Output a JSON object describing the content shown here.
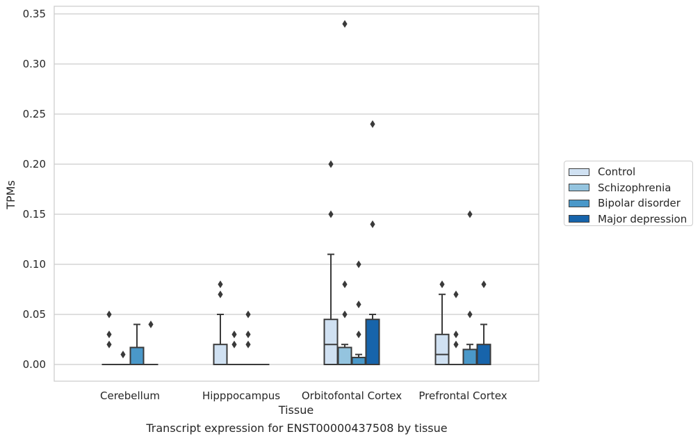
{
  "chart_data": {
    "type": "box",
    "title": "Transcript expression for ENST00000437508 by tissue",
    "xlabel": "Tissue",
    "ylabel": "TPMs",
    "ylim": [
      -0.017,
      0.358
    ],
    "yticks": [
      "0.00",
      "0.05",
      "0.10",
      "0.15",
      "0.20",
      "0.25",
      "0.30",
      "0.35"
    ],
    "categories": [
      "Cerebellum",
      "Hipppocampus",
      "Orbitofontal Cortex",
      "Prefrontal Cortex"
    ],
    "legend_position": "right",
    "grid": true,
    "series": [
      {
        "name": "Control",
        "color": "#d0e1f2",
        "boxes": [
          {
            "q1": 0,
            "median": 0,
            "q3": 0,
            "whisker_low": 0,
            "whisker_high": 0,
            "outliers": [
              0.02,
              0.03,
              0.05
            ]
          },
          {
            "q1": 0,
            "median": 0,
            "q3": 0.02,
            "whisker_low": 0,
            "whisker_high": 0.05,
            "outliers": [
              0.07,
              0.08
            ]
          },
          {
            "q1": 0,
            "median": 0.02,
            "q3": 0.045,
            "whisker_low": 0,
            "whisker_high": 0.11,
            "outliers": [
              0.15,
              0.2
            ]
          },
          {
            "q1": 0,
            "median": 0.01,
            "q3": 0.03,
            "whisker_low": 0,
            "whisker_high": 0.07,
            "outliers": [
              0.08
            ]
          }
        ]
      },
      {
        "name": "Schizophrenia",
        "color": "#94c4df",
        "boxes": [
          {
            "q1": 0,
            "median": 0,
            "q3": 0,
            "whisker_low": 0,
            "whisker_high": 0,
            "outliers": [
              0.01
            ]
          },
          {
            "q1": 0,
            "median": 0,
            "q3": 0,
            "whisker_low": 0,
            "whisker_high": 0,
            "outliers": [
              0.02,
              0.03
            ]
          },
          {
            "q1": 0,
            "median": 0,
            "q3": 0.017,
            "whisker_low": 0,
            "whisker_high": 0.02,
            "outliers": [
              0.05,
              0.08,
              0.34
            ]
          },
          {
            "q1": 0,
            "median": 0,
            "q3": 0,
            "whisker_low": 0,
            "whisker_high": 0,
            "outliers": [
              0.02,
              0.03,
              0.07
            ]
          }
        ]
      },
      {
        "name": "Bipolar disorder",
        "color": "#4a98c9",
        "boxes": [
          {
            "q1": 0,
            "median": 0,
            "q3": 0.017,
            "whisker_low": 0,
            "whisker_high": 0.04,
            "outliers": []
          },
          {
            "q1": 0,
            "median": 0,
            "q3": 0,
            "whisker_low": 0,
            "whisker_high": 0,
            "outliers": [
              0.02,
              0.03,
              0.05
            ]
          },
          {
            "q1": 0,
            "median": 0,
            "q3": 0.007,
            "whisker_low": 0,
            "whisker_high": 0.01,
            "outliers": [
              0.03,
              0.06,
              0.1
            ]
          },
          {
            "q1": 0,
            "median": 0,
            "q3": 0.015,
            "whisker_low": 0,
            "whisker_high": 0.02,
            "outliers": [
              0.05,
              0.15
            ]
          }
        ]
      },
      {
        "name": "Major depression",
        "color": "#1764ab",
        "boxes": [
          {
            "q1": 0,
            "median": 0,
            "q3": 0,
            "whisker_low": 0,
            "whisker_high": 0,
            "outliers": [
              0.04
            ]
          },
          {
            "q1": 0,
            "median": 0,
            "q3": 0,
            "whisker_low": 0,
            "whisker_high": 0,
            "outliers": []
          },
          {
            "q1": 0,
            "median": 0,
            "q3": 0.045,
            "whisker_low": 0,
            "whisker_high": 0.05,
            "outliers": [
              0.14,
              0.24
            ]
          },
          {
            "q1": 0,
            "median": 0,
            "q3": 0.02,
            "whisker_low": 0,
            "whisker_high": 0.04,
            "outliers": [
              0.08
            ]
          }
        ]
      }
    ]
  }
}
